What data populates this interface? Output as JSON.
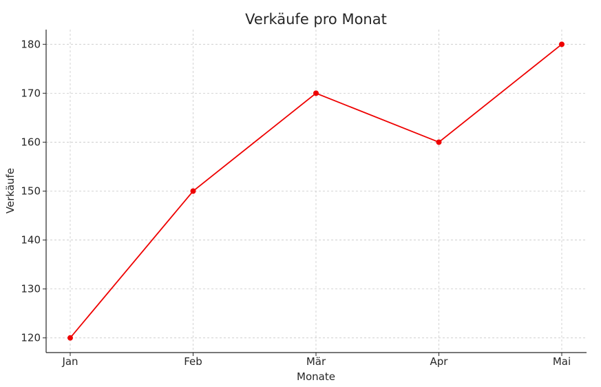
{
  "chart_data": {
    "type": "line",
    "title": "Verkäufe pro Monat",
    "xlabel": "Monate",
    "ylabel": "Verkäufe",
    "categories": [
      "Jan",
      "Feb",
      "Mär",
      "Apr",
      "Mai"
    ],
    "series": [
      {
        "values": [
          120,
          150,
          170,
          160,
          180
        ],
        "color": "#ee0000",
        "marker": "circle"
      }
    ],
    "ylim": [
      117,
      183
    ],
    "yticks": [
      120,
      130,
      140,
      150,
      160,
      170,
      180
    ],
    "grid": true,
    "legend": "none"
  }
}
